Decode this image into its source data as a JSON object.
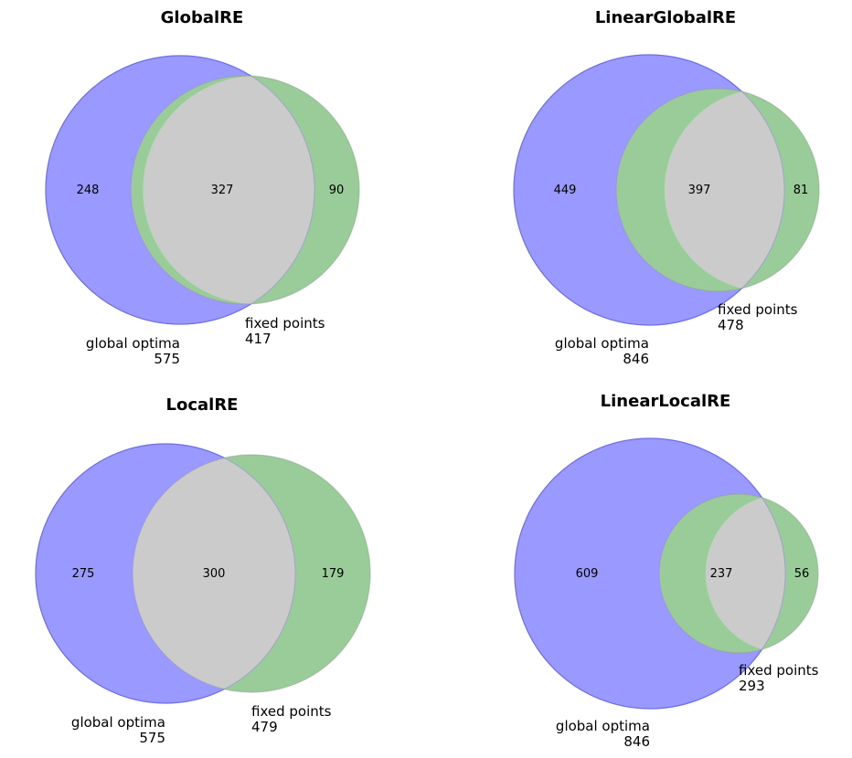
{
  "colors": {
    "set_a": "#9999ff",
    "set_a_edge": "#6f6fe6",
    "set_b": "#99cc99",
    "overlap": "#cbcbcb",
    "overlap_edge": "#9a9a9a"
  },
  "chart_data": [
    {
      "type": "venn2",
      "title": "GlobalRE",
      "sets": [
        {
          "name": "global optima",
          "size": 575
        },
        {
          "name": "fixed points",
          "size": 417
        }
      ],
      "regions": {
        "only_a": 248,
        "both": 327,
        "only_b": 90
      }
    },
    {
      "type": "venn2",
      "title": "LinearGlobalRE",
      "sets": [
        {
          "name": "global optima",
          "size": 846
        },
        {
          "name": "fixed points",
          "size": 478
        }
      ],
      "regions": {
        "only_a": 449,
        "both": 397,
        "only_b": 81
      }
    },
    {
      "type": "venn2",
      "title": "LocalRE",
      "sets": [
        {
          "name": "global optima",
          "size": 575
        },
        {
          "name": "fixed points",
          "size": 479
        }
      ],
      "regions": {
        "only_a": 275,
        "both": 300,
        "only_b": 179
      }
    },
    {
      "type": "venn2",
      "title": "LinearLocalRE",
      "sets": [
        {
          "name": "global optima",
          "size": 846
        },
        {
          "name": "fixed points",
          "size": 293
        }
      ],
      "regions": {
        "only_a": 609,
        "both": 237,
        "only_b": 56
      }
    }
  ]
}
